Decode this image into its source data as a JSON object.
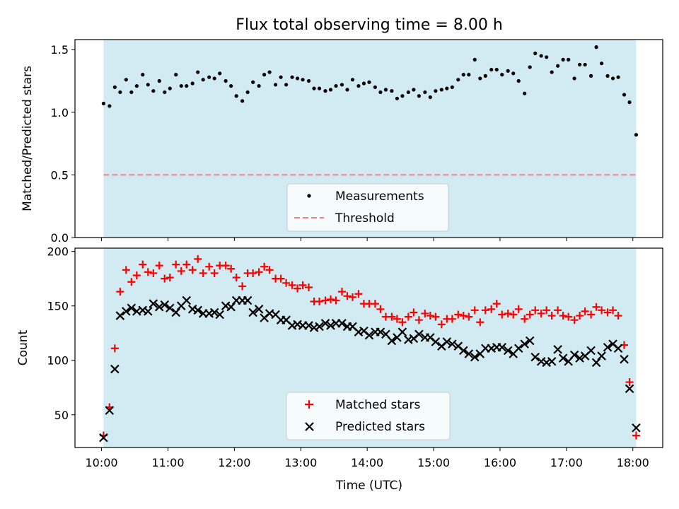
{
  "chart_data": [
    {
      "type": "scatter",
      "title": "Flux total observing time = 8.00 h",
      "xlabel": "",
      "ylabel": "Matched/Predicted stars",
      "ylim": [
        0.0,
        1.58
      ],
      "yticks": [
        "0.0",
        "0.5",
        "1.0",
        "1.5"
      ],
      "xlim": [
        9.6,
        18.45
      ],
      "observing_window": [
        10.03,
        18.05
      ],
      "threshold": 0.5,
      "legend": {
        "location": "lower center",
        "entries": [
          "Measurements",
          "Threshold"
        ]
      },
      "series": [
        {
          "name": "Measurements",
          "x": [
            10.03,
            10.12,
            10.2,
            10.28,
            10.37,
            10.45,
            10.53,
            10.62,
            10.7,
            10.78,
            10.87,
            10.95,
            11.03,
            11.12,
            11.2,
            11.28,
            11.37,
            11.45,
            11.53,
            11.62,
            11.7,
            11.78,
            11.87,
            11.95,
            12.03,
            12.12,
            12.2,
            12.28,
            12.37,
            12.45,
            12.53,
            12.62,
            12.7,
            12.78,
            12.87,
            12.95,
            13.03,
            13.12,
            13.2,
            13.28,
            13.37,
            13.45,
            13.53,
            13.62,
            13.7,
            13.78,
            13.87,
            13.95,
            14.03,
            14.12,
            14.2,
            14.28,
            14.37,
            14.45,
            14.53,
            14.62,
            14.7,
            14.78,
            14.87,
            14.95,
            15.03,
            15.12,
            15.2,
            15.28,
            15.37,
            15.45,
            15.53,
            15.62,
            15.7,
            15.78,
            15.87,
            15.95,
            16.03,
            16.12,
            16.2,
            16.28,
            16.37,
            16.45,
            16.53,
            16.62,
            16.7,
            16.78,
            16.87,
            16.95,
            17.03,
            17.12,
            17.2,
            17.28,
            17.37,
            17.45,
            17.53,
            17.62,
            17.7,
            17.78,
            17.87,
            17.95,
            18.05
          ],
          "values": [
            1.07,
            1.05,
            1.2,
            1.16,
            1.26,
            1.16,
            1.21,
            1.3,
            1.22,
            1.17,
            1.25,
            1.16,
            1.19,
            1.3,
            1.21,
            1.21,
            1.23,
            1.32,
            1.26,
            1.28,
            1.27,
            1.31,
            1.25,
            1.21,
            1.13,
            1.09,
            1.16,
            1.24,
            1.21,
            1.3,
            1.32,
            1.22,
            1.28,
            1.22,
            1.28,
            1.27,
            1.26,
            1.25,
            1.19,
            1.19,
            1.17,
            1.18,
            1.21,
            1.22,
            1.18,
            1.26,
            1.21,
            1.23,
            1.24,
            1.2,
            1.16,
            1.18,
            1.17,
            1.11,
            1.13,
            1.16,
            1.18,
            1.13,
            1.16,
            1.12,
            1.17,
            1.18,
            1.19,
            1.2,
            1.26,
            1.3,
            1.3,
            1.42,
            1.27,
            1.29,
            1.34,
            1.34,
            1.3,
            1.33,
            1.31,
            1.25,
            1.15,
            1.36,
            1.47,
            1.45,
            1.44,
            1.32,
            1.37,
            1.42,
            1.42,
            1.27,
            1.38,
            1.38,
            1.29,
            1.52,
            1.39,
            1.29,
            1.27,
            1.28,
            1.14,
            1.08,
            0.82
          ]
        }
      ]
    },
    {
      "type": "scatter",
      "title": "",
      "xlabel": "Time (UTC)",
      "ylabel": "Count",
      "ylim": [
        20,
        203
      ],
      "yticks": [
        "50",
        "100",
        "150",
        "200"
      ],
      "xlim": [
        9.6,
        18.45
      ],
      "xticks": [
        "10:00",
        "11:00",
        "12:00",
        "13:00",
        "14:00",
        "15:00",
        "16:00",
        "17:00",
        "18:00"
      ],
      "xtick_values": [
        10,
        11,
        12,
        13,
        14,
        15,
        16,
        17,
        18
      ],
      "observing_window": [
        10.03,
        18.05
      ],
      "legend": {
        "location": "lower center",
        "entries": [
          "Matched stars",
          "Predicted stars"
        ]
      },
      "series": [
        {
          "name": "Matched stars",
          "x": [
            10.03,
            10.12,
            10.2,
            10.28,
            10.37,
            10.45,
            10.53,
            10.62,
            10.7,
            10.78,
            10.87,
            10.95,
            11.03,
            11.12,
            11.2,
            11.28,
            11.37,
            11.45,
            11.53,
            11.62,
            11.7,
            11.78,
            11.87,
            11.95,
            12.03,
            12.12,
            12.2,
            12.28,
            12.37,
            12.45,
            12.53,
            12.62,
            12.7,
            12.78,
            12.87,
            12.95,
            13.03,
            13.12,
            13.2,
            13.28,
            13.37,
            13.45,
            13.53,
            13.62,
            13.7,
            13.78,
            13.87,
            13.95,
            14.03,
            14.12,
            14.2,
            14.28,
            14.37,
            14.45,
            14.53,
            14.62,
            14.7,
            14.78,
            14.87,
            14.95,
            15.03,
            15.12,
            15.2,
            15.28,
            15.37,
            15.45,
            15.53,
            15.62,
            15.7,
            15.78,
            15.87,
            15.95,
            16.03,
            16.12,
            16.2,
            16.28,
            16.37,
            16.45,
            16.53,
            16.62,
            16.7,
            16.78,
            16.87,
            16.95,
            17.03,
            17.12,
            17.2,
            17.28,
            17.37,
            17.45,
            17.53,
            17.62,
            17.7,
            17.78,
            17.87,
            17.95,
            18.05
          ],
          "values": [
            31,
            57,
            111,
            163,
            183,
            172,
            178,
            188,
            181,
            180,
            187,
            175,
            176,
            188,
            182,
            188,
            183,
            193,
            180,
            186,
            180,
            187,
            187,
            184,
            176,
            168,
            180,
            180,
            181,
            186,
            183,
            175,
            175,
            171,
            169,
            166,
            169,
            167,
            154,
            154,
            155,
            156,
            155,
            163,
            159,
            158,
            161,
            152,
            152,
            152,
            147,
            140,
            140,
            138,
            135,
            140,
            144,
            137,
            143,
            141,
            140,
            133,
            138,
            138,
            142,
            141,
            140,
            146,
            135,
            146,
            147,
            152,
            142,
            143,
            142,
            147,
            138,
            142,
            146,
            143,
            146,
            141,
            146,
            141,
            140,
            137,
            141,
            145,
            142,
            149,
            146,
            144,
            146,
            141,
            114,
            80,
            31
          ]
        },
        {
          "name": "Predicted stars",
          "x": [
            10.03,
            10.12,
            10.2,
            10.28,
            10.37,
            10.45,
            10.53,
            10.62,
            10.7,
            10.78,
            10.87,
            10.95,
            11.03,
            11.12,
            11.2,
            11.28,
            11.37,
            11.45,
            11.53,
            11.62,
            11.7,
            11.78,
            11.87,
            11.95,
            12.03,
            12.12,
            12.2,
            12.28,
            12.37,
            12.45,
            12.53,
            12.62,
            12.7,
            12.78,
            12.87,
            12.95,
            13.03,
            13.12,
            13.2,
            13.28,
            13.37,
            13.45,
            13.53,
            13.62,
            13.7,
            13.78,
            13.87,
            13.95,
            14.03,
            14.12,
            14.2,
            14.28,
            14.37,
            14.45,
            14.53,
            14.62,
            14.7,
            14.78,
            14.87,
            14.95,
            15.03,
            15.12,
            15.2,
            15.28,
            15.37,
            15.45,
            15.53,
            15.62,
            15.7,
            15.78,
            15.87,
            15.95,
            16.03,
            16.12,
            16.2,
            16.28,
            16.37,
            16.45,
            16.53,
            16.62,
            16.7,
            16.78,
            16.87,
            16.95,
            17.03,
            17.12,
            17.2,
            17.28,
            17.37,
            17.45,
            17.53,
            17.62,
            17.7,
            17.78,
            17.87,
            17.95,
            18.05
          ],
          "values": [
            29,
            54,
            92,
            141,
            145,
            148,
            145,
            146,
            145,
            152,
            149,
            151,
            148,
            144,
            150,
            155,
            147,
            146,
            143,
            143,
            144,
            142,
            150,
            149,
            155,
            155,
            155,
            144,
            147,
            139,
            143,
            142,
            137,
            137,
            132,
            133,
            132,
            132,
            130,
            131,
            134,
            132,
            134,
            134,
            131,
            131,
            126,
            127,
            123,
            126,
            126,
            124,
            118,
            121,
            126,
            119,
            120,
            124,
            121,
            121,
            117,
            113,
            117,
            115,
            113,
            109,
            106,
            103,
            106,
            111,
            111,
            112,
            112,
            109,
            106,
            111,
            115,
            118,
            103,
            99,
            98,
            99,
            110,
            102,
            99,
            105,
            102,
            104,
            109,
            98,
            104,
            112,
            115,
            111,
            101,
            74,
            38
          ]
        }
      ]
    }
  ],
  "colors": {
    "window_fill": "#ADD8E6",
    "measurements": "#000000",
    "threshold": "#F08080",
    "matched": "#FF0000",
    "predicted": "#000000"
  }
}
